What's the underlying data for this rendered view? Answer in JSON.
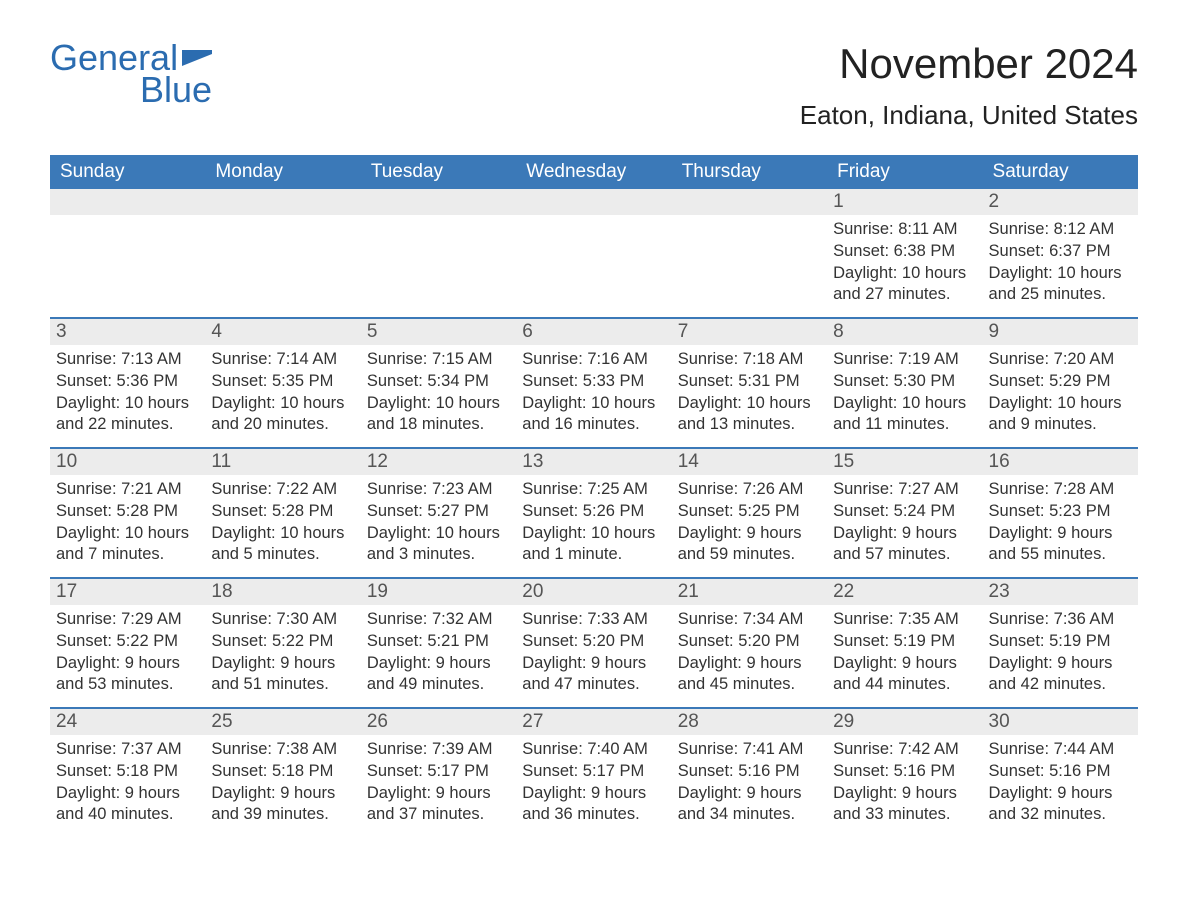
{
  "logo": {
    "text1": "General",
    "text2": "Blue"
  },
  "title": "November 2024",
  "location": "Eaton, Indiana, United States",
  "colors": {
    "header_bg": "#3b79b8",
    "header_text": "#ffffff",
    "daynum_bg": "#ececec",
    "rule": "#3b79b8",
    "logo_color": "#2b6cb0"
  },
  "fonts": {
    "title_size": 42,
    "location_size": 26,
    "day_header_size": 19,
    "body_size": 16.5
  },
  "day_headers": [
    "Sunday",
    "Monday",
    "Tuesday",
    "Wednesday",
    "Thursday",
    "Friday",
    "Saturday"
  ],
  "weeks": [
    [
      {
        "blank": true
      },
      {
        "blank": true
      },
      {
        "blank": true
      },
      {
        "blank": true
      },
      {
        "blank": true
      },
      {
        "date": "1",
        "sunrise": "Sunrise: 8:11 AM",
        "sunset": "Sunset: 6:38 PM",
        "daylight": "Daylight: 10 hours and 27 minutes."
      },
      {
        "date": "2",
        "sunrise": "Sunrise: 8:12 AM",
        "sunset": "Sunset: 6:37 PM",
        "daylight": "Daylight: 10 hours and 25 minutes."
      }
    ],
    [
      {
        "date": "3",
        "sunrise": "Sunrise: 7:13 AM",
        "sunset": "Sunset: 5:36 PM",
        "daylight": "Daylight: 10 hours and 22 minutes."
      },
      {
        "date": "4",
        "sunrise": "Sunrise: 7:14 AM",
        "sunset": "Sunset: 5:35 PM",
        "daylight": "Daylight: 10 hours and 20 minutes."
      },
      {
        "date": "5",
        "sunrise": "Sunrise: 7:15 AM",
        "sunset": "Sunset: 5:34 PM",
        "daylight": "Daylight: 10 hours and 18 minutes."
      },
      {
        "date": "6",
        "sunrise": "Sunrise: 7:16 AM",
        "sunset": "Sunset: 5:33 PM",
        "daylight": "Daylight: 10 hours and 16 minutes."
      },
      {
        "date": "7",
        "sunrise": "Sunrise: 7:18 AM",
        "sunset": "Sunset: 5:31 PM",
        "daylight": "Daylight: 10 hours and 13 minutes."
      },
      {
        "date": "8",
        "sunrise": "Sunrise: 7:19 AM",
        "sunset": "Sunset: 5:30 PM",
        "daylight": "Daylight: 10 hours and 11 minutes."
      },
      {
        "date": "9",
        "sunrise": "Sunrise: 7:20 AM",
        "sunset": "Sunset: 5:29 PM",
        "daylight": "Daylight: 10 hours and 9 minutes."
      }
    ],
    [
      {
        "date": "10",
        "sunrise": "Sunrise: 7:21 AM",
        "sunset": "Sunset: 5:28 PM",
        "daylight": "Daylight: 10 hours and 7 minutes."
      },
      {
        "date": "11",
        "sunrise": "Sunrise: 7:22 AM",
        "sunset": "Sunset: 5:28 PM",
        "daylight": "Daylight: 10 hours and 5 minutes."
      },
      {
        "date": "12",
        "sunrise": "Sunrise: 7:23 AM",
        "sunset": "Sunset: 5:27 PM",
        "daylight": "Daylight: 10 hours and 3 minutes."
      },
      {
        "date": "13",
        "sunrise": "Sunrise: 7:25 AM",
        "sunset": "Sunset: 5:26 PM",
        "daylight": "Daylight: 10 hours and 1 minute."
      },
      {
        "date": "14",
        "sunrise": "Sunrise: 7:26 AM",
        "sunset": "Sunset: 5:25 PM",
        "daylight": "Daylight: 9 hours and 59 minutes."
      },
      {
        "date": "15",
        "sunrise": "Sunrise: 7:27 AM",
        "sunset": "Sunset: 5:24 PM",
        "daylight": "Daylight: 9 hours and 57 minutes."
      },
      {
        "date": "16",
        "sunrise": "Sunrise: 7:28 AM",
        "sunset": "Sunset: 5:23 PM",
        "daylight": "Daylight: 9 hours and 55 minutes."
      }
    ],
    [
      {
        "date": "17",
        "sunrise": "Sunrise: 7:29 AM",
        "sunset": "Sunset: 5:22 PM",
        "daylight": "Daylight: 9 hours and 53 minutes."
      },
      {
        "date": "18",
        "sunrise": "Sunrise: 7:30 AM",
        "sunset": "Sunset: 5:22 PM",
        "daylight": "Daylight: 9 hours and 51 minutes."
      },
      {
        "date": "19",
        "sunrise": "Sunrise: 7:32 AM",
        "sunset": "Sunset: 5:21 PM",
        "daylight": "Daylight: 9 hours and 49 minutes."
      },
      {
        "date": "20",
        "sunrise": "Sunrise: 7:33 AM",
        "sunset": "Sunset: 5:20 PM",
        "daylight": "Daylight: 9 hours and 47 minutes."
      },
      {
        "date": "21",
        "sunrise": "Sunrise: 7:34 AM",
        "sunset": "Sunset: 5:20 PM",
        "daylight": "Daylight: 9 hours and 45 minutes."
      },
      {
        "date": "22",
        "sunrise": "Sunrise: 7:35 AM",
        "sunset": "Sunset: 5:19 PM",
        "daylight": "Daylight: 9 hours and 44 minutes."
      },
      {
        "date": "23",
        "sunrise": "Sunrise: 7:36 AM",
        "sunset": "Sunset: 5:19 PM",
        "daylight": "Daylight: 9 hours and 42 minutes."
      }
    ],
    [
      {
        "date": "24",
        "sunrise": "Sunrise: 7:37 AM",
        "sunset": "Sunset: 5:18 PM",
        "daylight": "Daylight: 9 hours and 40 minutes."
      },
      {
        "date": "25",
        "sunrise": "Sunrise: 7:38 AM",
        "sunset": "Sunset: 5:18 PM",
        "daylight": "Daylight: 9 hours and 39 minutes."
      },
      {
        "date": "26",
        "sunrise": "Sunrise: 7:39 AM",
        "sunset": "Sunset: 5:17 PM",
        "daylight": "Daylight: 9 hours and 37 minutes."
      },
      {
        "date": "27",
        "sunrise": "Sunrise: 7:40 AM",
        "sunset": "Sunset: 5:17 PM",
        "daylight": "Daylight: 9 hours and 36 minutes."
      },
      {
        "date": "28",
        "sunrise": "Sunrise: 7:41 AM",
        "sunset": "Sunset: 5:16 PM",
        "daylight": "Daylight: 9 hours and 34 minutes."
      },
      {
        "date": "29",
        "sunrise": "Sunrise: 7:42 AM",
        "sunset": "Sunset: 5:16 PM",
        "daylight": "Daylight: 9 hours and 33 minutes."
      },
      {
        "date": "30",
        "sunrise": "Sunrise: 7:44 AM",
        "sunset": "Sunset: 5:16 PM",
        "daylight": "Daylight: 9 hours and 32 minutes."
      }
    ]
  ]
}
